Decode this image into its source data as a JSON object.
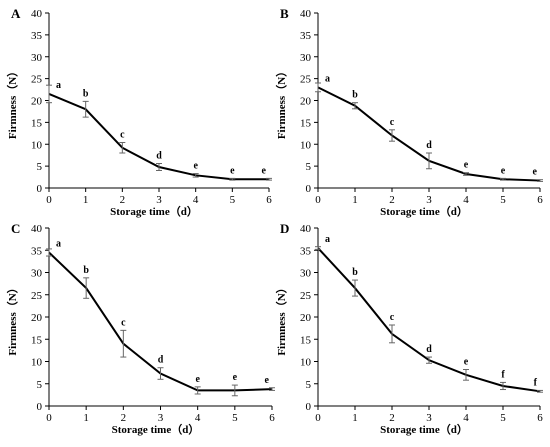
{
  "chart_data": [
    {
      "type": "line",
      "panel_label": "A",
      "xlabel": "Storage time（d）",
      "ylabel": "Firmness（N）",
      "xlim": [
        0,
        6
      ],
      "ylim": [
        0,
        40
      ],
      "x_ticks": [
        0,
        1,
        2,
        3,
        4,
        5,
        6
      ],
      "y_ticks": [
        0,
        5,
        10,
        15,
        20,
        25,
        30,
        35,
        40
      ],
      "x": [
        0,
        1,
        2,
        3,
        4,
        5,
        6
      ],
      "values": [
        21.5,
        18.0,
        9.2,
        4.8,
        2.9,
        2.0,
        2.0
      ],
      "error": [
        2.0,
        1.8,
        1.2,
        0.8,
        0.4,
        0.2,
        0.2
      ],
      "significance_letters": [
        "a",
        "b",
        "c",
        "d",
        "e",
        "e",
        "e"
      ],
      "grid": false
    },
    {
      "type": "line",
      "panel_label": "B",
      "xlabel": "Storage time（d）",
      "ylabel": "Firmness（N）",
      "xlim": [
        0,
        6
      ],
      "ylim": [
        0,
        40
      ],
      "x_ticks": [
        0,
        1,
        2,
        3,
        4,
        5,
        6
      ],
      "y_ticks": [
        0,
        5,
        10,
        15,
        20,
        25,
        30,
        35,
        40
      ],
      "x": [
        0,
        1,
        2,
        3,
        4,
        5,
        6
      ],
      "values": [
        23.0,
        18.8,
        12.0,
        6.2,
        3.2,
        2.0,
        1.7
      ],
      "error": [
        1.0,
        0.7,
        1.3,
        1.8,
        0.3,
        0.2,
        0.2
      ],
      "significance_letters": [
        "a",
        "b",
        "c",
        "d",
        "e",
        "e",
        "e"
      ],
      "grid": false
    },
    {
      "type": "line",
      "panel_label": "C",
      "xlabel": "Storage time（d）",
      "ylabel": "Firmness（N）",
      "xlim": [
        0,
        6
      ],
      "ylim": [
        0,
        40
      ],
      "x_ticks": [
        0,
        1,
        2,
        3,
        4,
        5,
        6
      ],
      "y_ticks": [
        0,
        5,
        10,
        15,
        20,
        25,
        30,
        35,
        40
      ],
      "x": [
        0,
        1,
        2,
        3,
        4,
        5,
        6
      ],
      "values": [
        34.5,
        26.5,
        14.0,
        7.3,
        3.5,
        3.5,
        3.8
      ],
      "error": [
        0.8,
        2.3,
        3.0,
        1.3,
        0.8,
        1.2,
        0.3
      ],
      "significance_letters": [
        "a",
        "b",
        "c",
        "d",
        "e",
        "e",
        "e"
      ],
      "grid": false
    },
    {
      "type": "line",
      "panel_label": "D",
      "xlabel": "Storage time（d）",
      "ylabel": "Firmness（N）",
      "xlim": [
        0,
        6
      ],
      "ylim": [
        0,
        40
      ],
      "x_ticks": [
        0,
        1,
        2,
        3,
        4,
        5,
        6
      ],
      "y_ticks": [
        0,
        5,
        10,
        15,
        20,
        25,
        30,
        35,
        40
      ],
      "x": [
        0,
        1,
        2,
        3,
        4,
        5,
        6
      ],
      "values": [
        35.5,
        26.5,
        16.2,
        10.3,
        7.0,
        4.5,
        3.3
      ],
      "error": [
        0.3,
        1.8,
        2.0,
        0.7,
        1.2,
        0.8,
        0.2
      ],
      "significance_letters": [
        "a",
        "b",
        "c",
        "d",
        "e",
        "f",
        "f"
      ],
      "grid": false
    }
  ]
}
